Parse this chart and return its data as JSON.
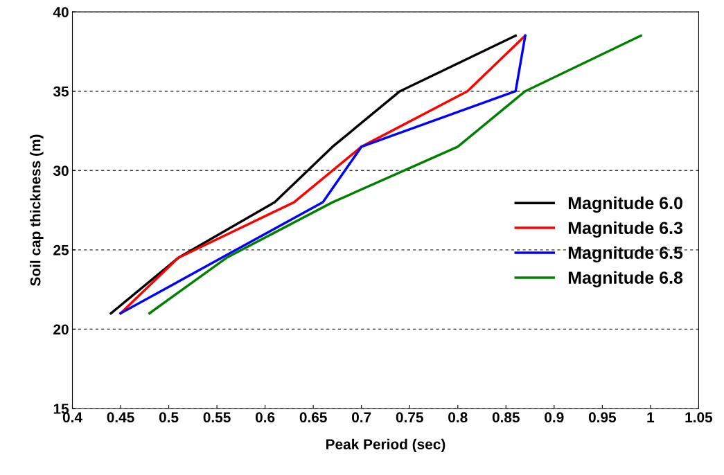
{
  "chart_data": {
    "type": "line",
    "xlabel": "Peak Period (sec)",
    "ylabel": "Soil cap thickness (m)",
    "xlim": [
      0.4,
      1.05
    ],
    "xticks": [
      0.4,
      0.45,
      0.5,
      0.55,
      0.6,
      0.65,
      0.7,
      0.75,
      0.8,
      0.85,
      0.9,
      0.95,
      1,
      1.05
    ],
    "ylim": [
      15,
      40
    ],
    "yticks": [
      15,
      20,
      25,
      30,
      35,
      40
    ],
    "grid": "y",
    "legend": "right",
    "marker": "none",
    "line_style": "solid",
    "series": [
      {
        "name": "Magnitude 6.0",
        "color": "#000000",
        "x": [
          0.44,
          0.51,
          0.61,
          0.67,
          0.74,
          0.86
        ],
        "values": [
          21,
          24.5,
          28,
          31.5,
          35,
          38.5
        ]
      },
      {
        "name": "Magnitude 6.3",
        "color": "#ff0000",
        "x": [
          0.45,
          0.51,
          0.63,
          0.7,
          0.81,
          0.87
        ],
        "values": [
          21,
          24.5,
          28,
          31.5,
          35,
          38.5
        ]
      },
      {
        "name": "Magnitude 6.5",
        "color": "#0000ff",
        "x": [
          0.45,
          0.66,
          0.7,
          0.86,
          0.87
        ],
        "values": [
          21,
          28,
          31.5,
          35,
          38.5
        ]
      },
      {
        "name": "Magnitude 6.8",
        "color": "#008000",
        "x": [
          0.48,
          0.56,
          0.67,
          0.8,
          0.87,
          0.99
        ],
        "values": [
          21,
          24.5,
          28,
          31.5,
          35,
          38.5
        ]
      }
    ]
  }
}
